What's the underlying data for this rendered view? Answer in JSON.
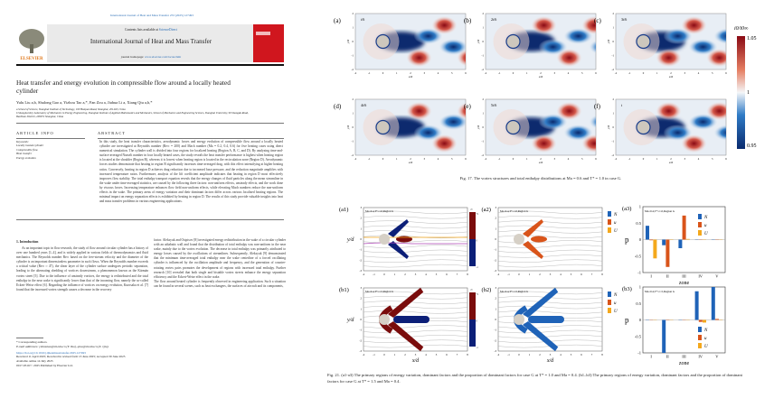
{
  "paper": {
    "running_header": "International Journal of Heat and Mass Transfer 253 (2025) 127493",
    "contents_line": "Contents lists available at",
    "sciencedirect": "ScienceDirect",
    "journal_name": "International Journal of Heat and Mass Transfer",
    "homepage_label": "journal homepage:",
    "homepage_url": "www.elsevier.com/locate/hmt",
    "publisher": "ELSEVIER",
    "title": "Heat transfer and energy evolution in compressible flow around a locally heated cylinder",
    "authors": "Yulu Liu a,b, Shulong Gao a, Yizhou Tao a,*, Fan Zou a, Jiahua Li a, Xiang Qiu a,b,*",
    "affiliation_a": "a School of Science, Shanghai Institute of Technology, 100 Haiquan Road, Shanghai, 201418, China",
    "affiliation_b": "b Shanghai Key Laboratory of Mechanics in Energy Engineering, Shanghai Institute of Applied Mathematics and Mechanics, School of Mechanics and Engineering Science, Shanghai University, 99 Shangda Road, BaoShan District, 200072 Shanghai, China",
    "article_info_heading": "ARTICLE INFO",
    "keywords_label": "Keywords:",
    "keywords": [
      "Locally heated cylinder",
      "Compressible flow",
      "Heat transfer",
      "Energy evolution"
    ],
    "abstract_heading": "ABSTRACT",
    "abstract": "In this study, the heat transfer characteristics, aerodynamic forces and energy evolution of compressible flow around a locally heated cylinder are investigated at Reynolds number (Re∞ = 200) and Mach number (Ma = 0.2, 0.4, 0.6) for five heating cases using direct numerical simulation. The cylinder wall is divided into four regions for localized heating (Region A, B, C, and D). By analyzing time-and-surface-averaged Nusselt number in four locally heated cases, the study reveals the heat transfer performance is highest when heating region is located at the shoulder (Region B), whereas it is lowest when heating region is located in the recirculation zone (Region D). Aerodynamic forces studies demonstrate that heating in region B significantly increases time-averaged drag, with this effect intensifying at higher heating ratios. Conversely, heating in region D achieves drag reduction due to increased base pressure, and the reduction magnitude amplifies with increased temperature ratios. Furthermore, analysis of the lift coefficient amplitude indicates that heating in region D most effectively improves flow stability. The total enthalpy transport equation reveals that the energy changes of fluid particles along the mean streamline in the wake under time-averaged statistics, are caused by the following three factors: non-uniform effects, unsteady effects, and the work done by viscous forces. Increasing temperature enhances flow field non-uniform effects, while elevating Mach numbers reduce the non-uniform effects in the wake. The primary areas of energy variation and their dominant factors differ across various localized heating regions. The minimal impact on energy separation effects is exhibited by heating in region D. The results of this study provide valuable insights into heat and mass transfer problems in various engineering applications.",
    "intro_heading": "1. Introduction",
    "intro_col1": "As an important topic in flow research, the study of flow around circular cylinder has a history of over one hundred years [1–4], and is widely applied in various fields of thermodynamics and fluid mechanics. The Reynolds number Re∞ based on the free-stream velocity and the diameter of the cylinder is an important dimensionless parameter in such flows. When the Reynolds number exceeds a critical value (Re∞ ≈ 47), the shear layer of the cylinder surface undergoes periodic separation, leading to the alternating shedding of vortices downstream, a phenomenon known as the Kármán vortex street [5]. Due to the influence of unsteady vortices, the energy is redistributed and the total enthalpy in the near wake is significantly lower than that of the incoming flow, namely the so-called Eckert-Weise effect [6]. Regarding the influence of vortices on energy evolution, Kurosaka et al. [7] found that the increased vortex strength causes a decrease in the recovery",
    "intro_col2": "factor. Aleksyuk and Osiptsov [8] investigated energy redistribution in the wake of a circular cylinder with an adiabatic wall and found that the distribution of total enthalpy was non-uniform in the near wake, mainly due to the vortex evolution. The decrease in total enthalpy was primarily attributed to energy losses caused by the oscillations of streamlines. Subsequently, Aleksyuk [9] demonstrated that the minimum time-averaged total enthalpy near the wake centerline of a forced oscillating cylinder is influenced by the oscillation amplitude and frequency, and the generation of counter-rotating vortex pairs promotes the development of regions with increased total enthalpy. Further research [10] revealed that both single and bistable vortex streets enhance the energy separation efficiency and the Eckert-Weise effect in the wake.\n    The flow around heated cylinder is frequently observed in engineering application. Such a situation can be found in several scenes, such as heat exchangers, the surfaces of aircraft and its components,",
    "footnote_star": "* Corresponding authors.",
    "footnote_email": "E-mail addresses: yizhoutao@sit.edu.cn (Y. Tao), qiux@sit.edu.cn (X. Qiu).",
    "doi": "https://doi.org/10.1016/j.ijheatmasstransfer.2025.127493",
    "received": "Received 11 April 2025; Received in revised form 13 June 2025; Accepted 30 June 2025",
    "online": "Available online 14 July 2025",
    "copyright": "0017-9310/© 2025 Published by Elsevier Ltd."
  },
  "fig17": {
    "panels": [
      {
        "tag": "(a)",
        "time": "t/6"
      },
      {
        "tag": "(b)",
        "time": "2t/6"
      },
      {
        "tag": "(c)",
        "time": "3t/6"
      },
      {
        "tag": "(d)",
        "time": "4t/6"
      },
      {
        "tag": "(e)",
        "time": "5t/6"
      },
      {
        "tag": "(f)",
        "time": "t"
      }
    ],
    "xlabel": "x/d",
    "ylabel": "y/d",
    "xticks": [
      "-2",
      "-1",
      "0",
      "1",
      "2",
      "3",
      "4",
      "5",
      "6"
    ],
    "yticks": [
      "2",
      "1",
      "0",
      "-1",
      "-2"
    ],
    "colorbar": {
      "label": "i0/i0∞",
      "max": "1.05",
      "mid": "1",
      "min": "0.95",
      "colors": [
        "#0a2a6e",
        "#2f7bc6",
        "#f4f6f8",
        "#e57e62",
        "#8a0a14"
      ]
    },
    "caption": "Fig. 17.  The vortex structures and total enthalpy distributions at Ma = 0.6 and T* = 1.0 in case G."
  },
  "fig21": {
    "field_panels": [
      {
        "tag": "(a1)",
        "label": "Ma=0.4,T*=1.0,Region G",
        "show_cbar": true
      },
      {
        "tag": "(a2)",
        "label": "Ma=0.4,T*=1.0,Region G",
        "show_cbar": false
      },
      {
        "tag": "(b1)",
        "label": "Ma=0.4,T*=1.5,Region G",
        "show_cbar": true
      },
      {
        "tag": "(b2)",
        "label": "Ma=0.4,T*=1.5,Region G",
        "show_cbar": false
      }
    ],
    "xlabel": "x/d",
    "ylabel": "y/d",
    "xticks": [
      "-2",
      "-1",
      "0",
      "1",
      "2",
      "3",
      "4",
      "5",
      "6",
      "7",
      "8"
    ],
    "yticks": [
      "3",
      "2",
      "1",
      "0",
      "-1",
      "-2",
      "-3"
    ],
    "cbar_label": "C",
    "cbar_ticks": [
      "+1",
      "0",
      "-1"
    ],
    "legend": [
      "N",
      "u",
      "U"
    ],
    "colors": {
      "N": "#1f63b8",
      "u": "#d9541a",
      "U": "#f4a81c",
      "positive": "#7a0c0c",
      "negative": "#0c1f78"
    },
    "caption": "Fig. 21.  (a1-a3) The primary regions of energy variation, dominant factors and the proportion of dominant factors for case G at T* = 1.0 and Ma = 0.4. (b1–b3) The primary regions of energy variation, dominant factors and the proportion of dominant factors for case G at T* = 1.5 and Ma = 0.4."
  },
  "chart_data": [
    {
      "type": "bar",
      "tag": "(a3)",
      "title": "Ma=0.4,T*=1.0,Region G",
      "categories": [
        "I",
        "II",
        "III",
        "IV",
        "V"
      ],
      "xlabel": "zone",
      "ylabel": "p",
      "ylim": [
        -1,
        1
      ],
      "yticks": [
        "1",
        "0.5",
        "0",
        "-0.5",
        "-1"
      ],
      "series": [
        {
          "name": "N",
          "values": [
            0.42,
            -0.17,
            -0.26,
            0,
            0
          ]
        },
        {
          "name": "u",
          "values": [
            -0.02,
            -0.83,
            0.73,
            0,
            0
          ]
        },
        {
          "name": "U",
          "values": [
            -0.57,
            -0.01,
            0.02,
            0,
            0
          ]
        }
      ],
      "legend": "top-right"
    },
    {
      "type": "bar",
      "tag": "(b3)",
      "title": "Ma=0.4,T*=1.5,Region G",
      "categories": [
        "I",
        "II",
        "III",
        "IV",
        "V"
      ],
      "xlabel": "zone",
      "ylabel": "p",
      "ylim": [
        -1,
        1
      ],
      "yticks": [
        "1",
        "0.5",
        "0",
        "-0.5",
        "-1"
      ],
      "series": [
        {
          "name": "N",
          "values": [
            0,
            -1.0,
            0,
            0.87,
            1.0
          ]
        },
        {
          "name": "u",
          "values": [
            0,
            0.01,
            0,
            -0.06,
            0.03
          ]
        },
        {
          "name": "U",
          "values": [
            0,
            0,
            0,
            -0.08,
            0.01
          ]
        }
      ],
      "legend": "bottom-right"
    }
  ]
}
